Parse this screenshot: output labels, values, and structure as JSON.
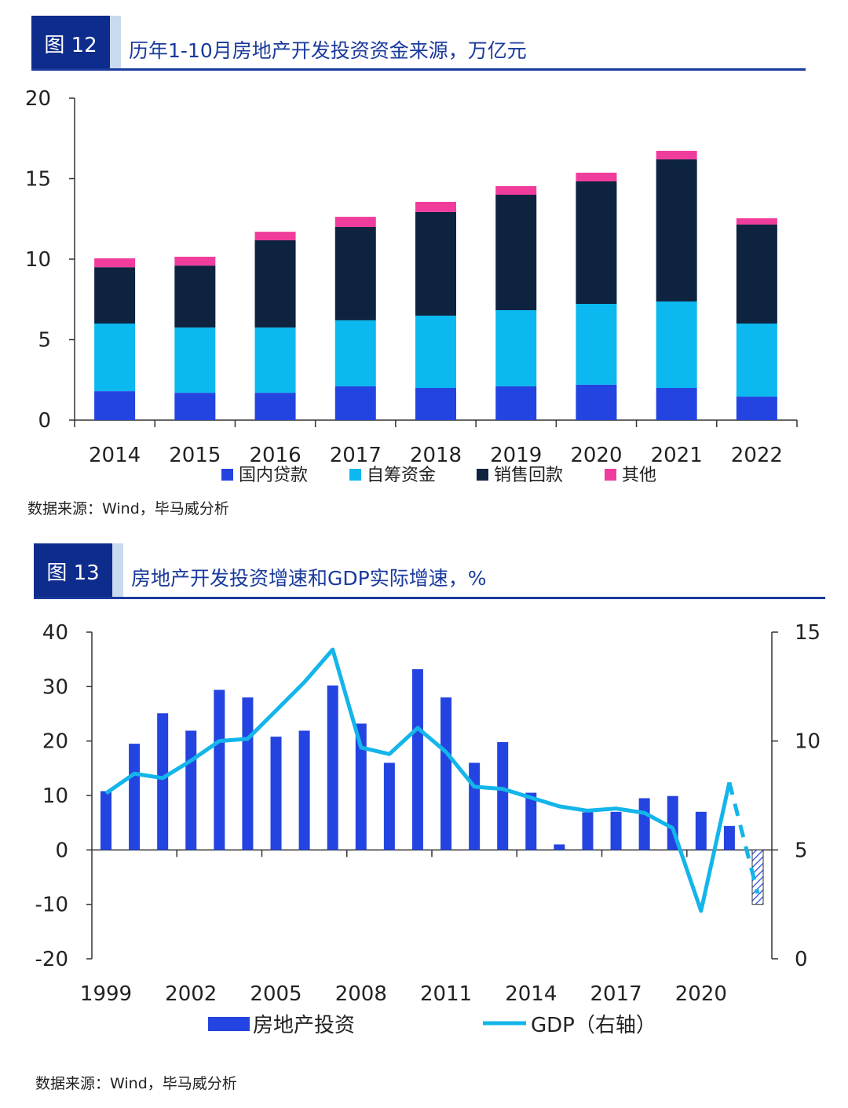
{
  "figure12": {
    "number": "图 12",
    "title": "历年1-10月房地产开发投资资金来源，万亿元",
    "source": "数据来源：Wind，毕马威分析"
  },
  "figure13": {
    "number": "图 13",
    "title": "房地产开发投资增速和GDP实际增速，%",
    "source": "数据来源：Wind，毕马威分析"
  },
  "chart_data": [
    {
      "type": "bar",
      "stacked": true,
      "categories": [
        "2014",
        "2015",
        "2016",
        "2017",
        "2018",
        "2019",
        "2020",
        "2021",
        "2022"
      ],
      "series": [
        {
          "name": "国内贷款",
          "color": "#2344e0",
          "values": [
            1.8,
            1.7,
            1.7,
            2.1,
            2.0,
            2.1,
            2.2,
            2.0,
            1.46
          ]
        },
        {
          "name": "自筹资金",
          "color": "#0bb8ef",
          "values": [
            4.2,
            4.05,
            4.05,
            4.1,
            4.49,
            4.73,
            5.02,
            5.37,
            4.54
          ]
        },
        {
          "name": "销售回款",
          "color": "#0d2340",
          "values": [
            3.5,
            3.85,
            5.42,
            5.8,
            6.44,
            7.17,
            7.61,
            8.83,
            6.15
          ]
        },
        {
          "name": "其他",
          "color": "#f03d9c",
          "values": [
            0.55,
            0.55,
            0.53,
            0.63,
            0.63,
            0.54,
            0.54,
            0.53,
            0.39
          ]
        }
      ],
      "ylim": [
        0,
        20
      ],
      "yticks": [
        "0",
        "5",
        "10",
        "15",
        "20"
      ],
      "legend": "bottom",
      "grid": false
    },
    {
      "type": "bar+line",
      "x": [
        "1999",
        "2000",
        "2001",
        "2002",
        "2003",
        "2004",
        "2005",
        "2006",
        "2007",
        "2008",
        "2009",
        "2010",
        "2011",
        "2012",
        "2013",
        "2014",
        "2015",
        "2016",
        "2017",
        "2018",
        "2019",
        "2020",
        "2021",
        "2022"
      ],
      "xtick_labels": [
        "1999",
        "2002",
        "2005",
        "2008",
        "2011",
        "2014",
        "2017",
        "2020"
      ],
      "series": [
        {
          "name": "房地产投资",
          "type": "bar",
          "axis": "left",
          "color": "#2344e0",
          "values": [
            10.8,
            19.5,
            25.1,
            21.9,
            29.4,
            28.0,
            20.8,
            21.9,
            30.2,
            23.2,
            16.0,
            33.2,
            28.0,
            16.0,
            19.8,
            10.5,
            1.0,
            6.9,
            7.0,
            9.5,
            9.9,
            7.0,
            4.4,
            -10.0
          ],
          "note_last_hatched": true
        },
        {
          "name": "GDP（右轴）",
          "type": "line",
          "axis": "right",
          "color": "#13b5ea",
          "values": [
            7.6,
            8.5,
            8.3,
            9.1,
            10.0,
            10.1,
            11.4,
            12.7,
            14.2,
            9.7,
            9.4,
            10.6,
            9.5,
            7.9,
            7.8,
            7.4,
            7.0,
            6.8,
            6.9,
            6.7,
            6.0,
            2.2,
            8.1,
            3.0
          ],
          "dashed_last_segment": true
        }
      ],
      "ylim_left": [
        -20,
        40
      ],
      "yticks_left": [
        "-20",
        "-10",
        "0",
        "10",
        "20",
        "30",
        "40"
      ],
      "ylim_right": [
        0,
        15
      ],
      "yticks_right": [
        "0",
        "5",
        "10",
        "15"
      ],
      "legend": "bottom",
      "grid": false
    }
  ]
}
